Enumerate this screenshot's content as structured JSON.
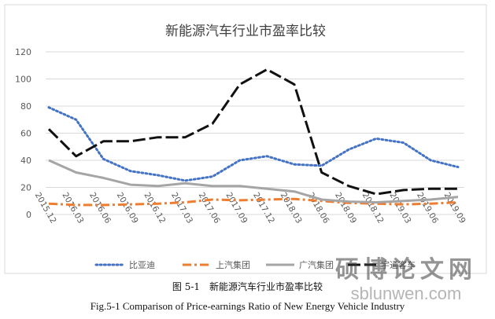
{
  "chart_data": {
    "type": "line",
    "title": "新能源汽车行业市盈率比较",
    "xlabel": "",
    "ylabel": "",
    "ylim": [
      0,
      120
    ],
    "yticks": [
      0,
      20,
      40,
      60,
      80,
      100,
      120
    ],
    "grid": true,
    "legend_position": "bottom",
    "x": [
      "2015.12",
      "2016.03",
      "2016.06",
      "2016.09",
      "2016.12",
      "2017.03",
      "2017.06",
      "2017.09",
      "2017.12",
      "2018.03",
      "2018.06",
      "2018.09",
      "2018.12",
      "2019.03",
      "2019.06",
      "2019.09"
    ],
    "series": [
      {
        "name": "比亚迪",
        "color": "#4472c4",
        "style": "dotted",
        "values": [
          79,
          70,
          41,
          32,
          29,
          25,
          28,
          40,
          43,
          37,
          36,
          48,
          56,
          53,
          40,
          35
        ]
      },
      {
        "name": "上汽集团",
        "color": "#ed7d31",
        "style": "dashdot",
        "values": [
          8,
          7,
          7,
          7.5,
          8,
          9,
          11,
          10.5,
          11,
          11.5,
          10,
          8.5,
          8,
          7.5,
          8,
          9
        ]
      },
      {
        "name": "广汽集团",
        "color": "#a5a5a5",
        "style": "solid",
        "values": [
          40,
          31,
          27,
          22,
          21,
          23,
          21,
          21,
          19,
          17,
          11,
          9.5,
          9,
          10,
          11,
          13
        ]
      },
      {
        "name": "宇通客车",
        "color": "#111111",
        "style": "longdash",
        "values": [
          63,
          43,
          54,
          54,
          57,
          57,
          67,
          96,
          107,
          96,
          31,
          21,
          15,
          18,
          19,
          19
        ]
      }
    ]
  },
  "caption": {
    "zh": "图 5-1　新能源汽车行业市盈率比较",
    "en": "Fig.5-1 Comparison of Price-earnings Ratio of New Energy Vehicle Industry"
  },
  "watermark": {
    "zh": "硕博论文网",
    "en": "sblunwen.com"
  }
}
